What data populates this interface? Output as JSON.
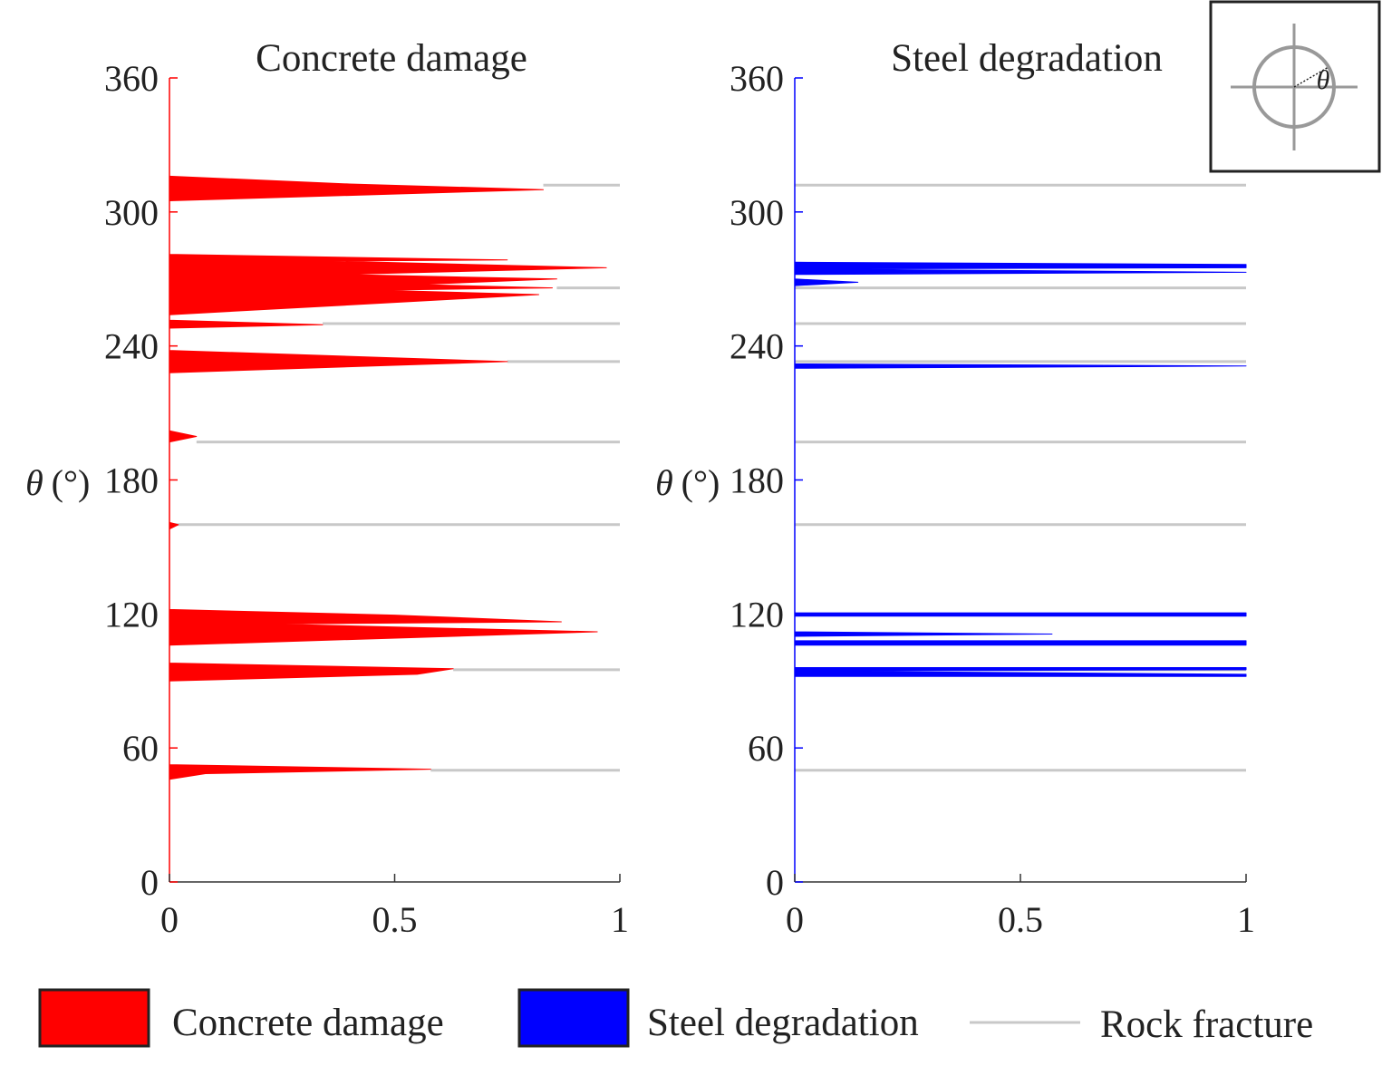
{
  "colors": {
    "concrete": "#ff0000",
    "steel": "#0000ff",
    "fracture": "#c8c8c8"
  },
  "ylabel_symbol": "θ",
  "ylabel_unit": "(°)",
  "inset": {
    "angle_symbol": "θ"
  },
  "legend": {
    "concrete": "Concrete damage",
    "steel": "Steel degradation",
    "fracture": "Rock fracture"
  },
  "chart_data": [
    {
      "type": "area",
      "title": "Concrete damage",
      "xlabel": "",
      "ylabel": "θ(°)",
      "xlim": [
        0,
        1
      ],
      "ylim": [
        0,
        360
      ],
      "xticks": [
        "0",
        "0.5",
        "1"
      ],
      "yticks": [
        "0",
        "60",
        "120",
        "180",
        "240",
        "300",
        "360"
      ],
      "grid": false,
      "series": [
        {
          "name": "Concrete damage",
          "color": "#ff0000",
          "profile": [
            [
              0,
              46
            ],
            [
              0.08,
              48.5
            ],
            [
              0.58,
              50.5
            ],
            [
              0,
              52.5
            ],
            [
              0,
              90
            ],
            [
              0.55,
              93
            ],
            [
              0.63,
              95.5
            ],
            [
              0,
              98
            ],
            [
              0,
              106
            ],
            [
              0.95,
              112
            ],
            [
              0.22,
              115.5
            ],
            [
              0.87,
              116.5
            ],
            [
              0.5,
              119.5
            ],
            [
              0,
              122
            ],
            [
              0,
              158
            ],
            [
              0.02,
              160
            ],
            [
              0,
              161
            ],
            [
              0,
              197
            ],
            [
              0.06,
              199.5
            ],
            [
              0,
              202
            ],
            [
              0,
              228
            ],
            [
              0.75,
              233
            ],
            [
              0,
              238
            ],
            [
              0,
              248
            ],
            [
              0.34,
              249.5
            ],
            [
              0,
              251.5
            ],
            [
              0,
              254
            ],
            [
              0.82,
              263
            ],
            [
              0.46,
              265
            ],
            [
              0.85,
              266
            ],
            [
              0.55,
              267.5
            ],
            [
              0.86,
              270
            ],
            [
              0.38,
              272
            ],
            [
              0.97,
              275
            ],
            [
              0.36,
              278
            ],
            [
              0.75,
              278.5
            ],
            [
              0,
              281
            ],
            [
              0,
              305
            ],
            [
              0.83,
              310
            ],
            [
              0.4,
              312.5
            ],
            [
              0,
              316
            ]
          ]
        },
        {
          "name": "Rock fracture",
          "color": "#c8c8c8",
          "values": [
            50,
            95,
            160,
            197,
            233,
            250,
            266,
            312
          ],
          "xmin": [
            0.58,
            0.63,
            0.0,
            0.06,
            0.75,
            0.34,
            0.86,
            0.83
          ],
          "xmax": 1
        }
      ]
    },
    {
      "type": "area",
      "title": "Steel degradation",
      "xlabel": "",
      "ylabel": "θ(°)",
      "xlim": [
        0,
        1
      ],
      "ylim": [
        0,
        360
      ],
      "xticks": [
        "0",
        "0.5",
        "1"
      ],
      "yticks": [
        "0",
        "60",
        "120",
        "180",
        "240",
        "300",
        "360"
      ],
      "grid": false,
      "series": [
        {
          "name": "Steel degradation",
          "color": "#0000ff",
          "profile": [
            [
              0,
              92
            ],
            [
              1,
              92
            ],
            [
              1,
              93
            ],
            [
              0,
              94.5
            ],
            [
              1,
              95
            ],
            [
              1,
              96
            ],
            [
              0,
              96
            ],
            [
              0,
              106
            ],
            [
              1,
              106
            ],
            [
              1,
              108
            ],
            [
              0,
              108
            ],
            [
              0,
              110
            ],
            [
              0.57,
              111
            ],
            [
              0,
              112
            ],
            [
              0,
              119
            ],
            [
              1,
              119
            ],
            [
              1,
              120.5
            ],
            [
              0,
              120.5
            ],
            [
              0,
              230
            ],
            [
              1,
              231
            ],
            [
              0,
              232
            ],
            [
              0,
              267
            ],
            [
              0.14,
              268.5
            ],
            [
              0,
              270
            ],
            [
              0,
              272
            ],
            [
              1,
              273
            ],
            [
              0,
              274.5
            ],
            [
              1,
              275
            ],
            [
              1,
              276.5
            ],
            [
              0,
              277.5
            ]
          ]
        },
        {
          "name": "Rock fracture",
          "color": "#c8c8c8",
          "values": [
            50,
            95,
            160,
            197,
            233,
            250,
            266,
            312
          ],
          "xmin": 0,
          "xmax": 1
        }
      ]
    }
  ]
}
